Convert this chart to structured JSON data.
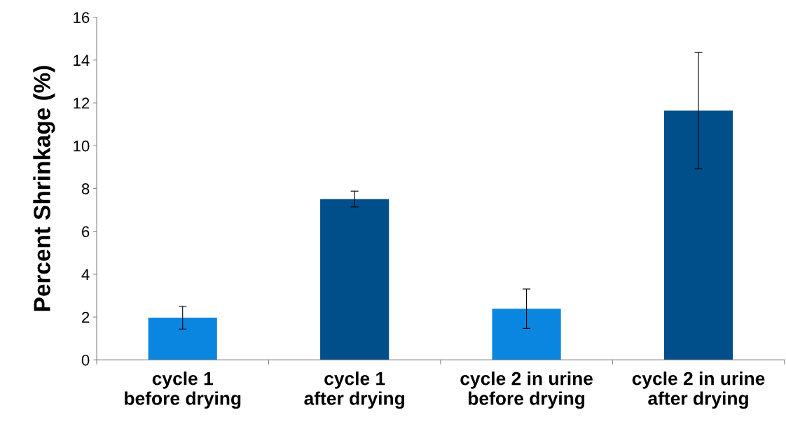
{
  "chart_data": {
    "type": "bar",
    "ylabel": "Percent Shrinkage (%)",
    "categories": [
      "cycle 1 before drying",
      "cycle 1 after drying",
      "cycle 2 in urine before drying",
      "cycle 2 in urine after drying"
    ],
    "values": [
      1.97,
      7.51,
      2.39,
      11.64
    ],
    "errors": [
      0.53,
      0.37,
      0.92,
      2.72
    ],
    "colors": [
      "#0a86e0",
      "#004f8a",
      "#0a86e0",
      "#004f8a"
    ],
    "ylim": [
      0,
      16
    ],
    "yticks": [
      0,
      2,
      4,
      6,
      8,
      10,
      12,
      14,
      16
    ],
    "grid": false
  }
}
